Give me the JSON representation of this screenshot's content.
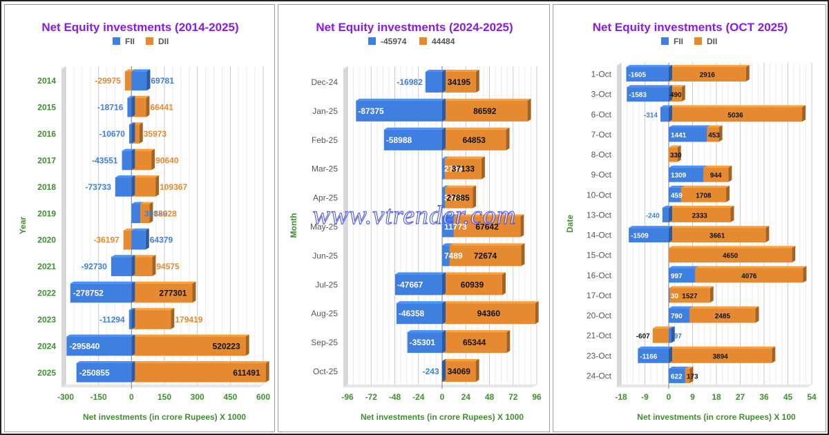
{
  "watermark": "www.vtrender.com",
  "colors": {
    "fii": "#3f7fe0",
    "dii": "#e58a30",
    "title": "#8a1be0",
    "axis": "#3f8f2f",
    "year_label": "#3f8f2f",
    "month_label": "#555555"
  },
  "chart_data": [
    {
      "type": "bar",
      "orientation": "horizontal",
      "title": "Net Equity investments (2014-2025)",
      "legend": [
        "FII",
        "DII"
      ],
      "legend_position": "top",
      "categories": [
        "2014",
        "2015",
        "2016",
        "2017",
        "2018",
        "2019",
        "2020",
        "2021",
        "2022",
        "2023",
        "2024",
        "2025"
      ],
      "series": [
        {
          "name": "FII",
          "values": [
            69781,
            -18716,
            -10670,
            -43551,
            -73733,
            39880,
            64379,
            -92730,
            -278752,
            -11294,
            -295840,
            -250855
          ]
        },
        {
          "name": "DII",
          "values": [
            -29975,
            66441,
            35973,
            90640,
            109367,
            42228,
            -36197,
            94575,
            277301,
            179419,
            520223,
            611491
          ]
        }
      ],
      "scale": 1000,
      "xlim": [
        -300,
        600
      ],
      "xticks": [
        "-300",
        "-150",
        "0",
        "150",
        "300",
        "450",
        "600"
      ],
      "xlabel": "Net investments (in crore Rupees) X 1000",
      "ylabel": "Year",
      "grid": true
    },
    {
      "type": "bar",
      "orientation": "horizontal",
      "title": "Net Equity investments (2024-2025)",
      "legend": [
        "-45974",
        "44484"
      ],
      "legend_position": "top",
      "categories": [
        "Dec-24",
        "Jan-25",
        "Feb-25",
        "Mar-25",
        "Apr-25",
        "May-25",
        "Jun-25",
        "Jul-25",
        "Aug-25",
        "Sep-25",
        "Oct-25"
      ],
      "series": [
        {
          "name": "-45974",
          "values": [
            -16982,
            -87375,
            -58988,
            2738,
            3079,
            11773,
            7489,
            -47667,
            -46358,
            -35301,
            -243
          ]
        },
        {
          "name": "44484",
          "values": [
            34195,
            86592,
            64853,
            37133,
            27885,
            67642,
            72674,
            60939,
            94360,
            65344,
            34069
          ]
        }
      ],
      "scale": 1000,
      "xlim": [
        -96,
        96
      ],
      "xticks": [
        "-96",
        "-72",
        "-48",
        "-24",
        "0",
        "24",
        "48",
        "72",
        "96"
      ],
      "xlabel": "Net investments (in crore Rupees) X 1000",
      "ylabel": "Month",
      "grid": true
    },
    {
      "type": "bar",
      "orientation": "horizontal",
      "title": "Net Equity investments (OCT 2025)",
      "legend": [
        "FII",
        "DII"
      ],
      "legend_position": "top",
      "categories": [
        "1-Oct",
        "3-Oct",
        "6-Oct",
        "7-Oct",
        "8-Oct",
        "9-Oct",
        "10-Oct",
        "13-Oct",
        "14-Oct",
        "15-Oct",
        "16-Oct",
        "17-Oct",
        "20-Oct",
        "21-Oct",
        "23-Oct",
        "24-Oct"
      ],
      "series": [
        {
          "name": "FII",
          "values": [
            -1605,
            -1583,
            -314,
            1441,
            null,
            1309,
            459,
            -240,
            -1509,
            null,
            997,
            30,
            790,
            97,
            -1166,
            622
          ]
        },
        {
          "name": "DII",
          "values": [
            2916,
            490,
            5036,
            453,
            330,
            944,
            1708,
            2333,
            3661,
            4650,
            4076,
            1527,
            2485,
            -607,
            3894,
            173
          ]
        }
      ],
      "scale": 100,
      "xlim": [
        -18,
        54
      ],
      "xticks": [
        "-18",
        "-9",
        "0",
        "9",
        "18",
        "27",
        "36",
        "45",
        "54"
      ],
      "xlabel": "Net investments (in crore Rupees) X 100",
      "ylabel": "Date",
      "grid": true
    }
  ]
}
